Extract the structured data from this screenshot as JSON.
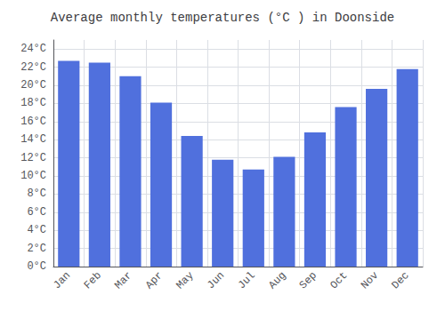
{
  "chart_data": {
    "type": "bar",
    "title": "Average monthly temperatures (°C ) in Doonside",
    "categories": [
      "Jan",
      "Feb",
      "Mar",
      "Apr",
      "May",
      "Jun",
      "Jul",
      "Aug",
      "Sep",
      "Oct",
      "Nov",
      "Dec"
    ],
    "values": [
      22.7,
      22.5,
      21.0,
      18.1,
      14.4,
      11.8,
      10.7,
      12.1,
      14.8,
      17.6,
      19.6,
      21.8
    ],
    "ylim": [
      0,
      25
    ],
    "yticks": [
      {
        "value": 0,
        "label": "0°C"
      },
      {
        "value": 2,
        "label": "2°C"
      },
      {
        "value": 4,
        "label": "4°C"
      },
      {
        "value": 6,
        "label": "6°C"
      },
      {
        "value": 8,
        "label": "8°C"
      },
      {
        "value": 10,
        "label": "10°C"
      },
      {
        "value": 12,
        "label": "12°C"
      },
      {
        "value": 14,
        "label": "14°C"
      },
      {
        "value": 16,
        "label": "16°C"
      },
      {
        "value": 18,
        "label": "18°C"
      },
      {
        "value": 20,
        "label": "20°C"
      },
      {
        "value": 22,
        "label": "22°C"
      },
      {
        "value": 24,
        "label": "24°C"
      }
    ],
    "grid": true
  }
}
